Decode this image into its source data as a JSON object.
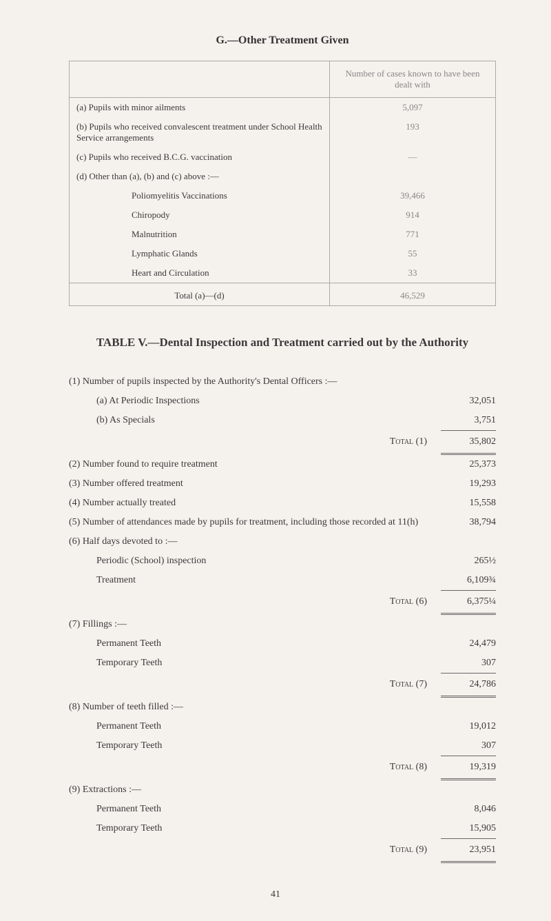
{
  "sectionG": {
    "title": "G.—Other Treatment Given",
    "headerRight": "Number of cases known to have been dealt with",
    "rows": [
      {
        "label": "(a) Pupils with minor ailments",
        "value": "5,097"
      },
      {
        "label": "(b) Pupils who received convalescent treatment under School Health Service arrangements",
        "value": "193"
      },
      {
        "label": "(c) Pupils who received B.C.G. vaccination",
        "value": "—"
      },
      {
        "label": "(d) Other than (a), (b) and (c) above :—",
        "value": ""
      }
    ],
    "subRows": [
      {
        "label": "Poliomyelitis Vaccinations",
        "value": "39,466"
      },
      {
        "label": "Chiropody",
        "value": "914"
      },
      {
        "label": "Malnutrition",
        "value": "771"
      },
      {
        "label": "Lymphatic Glands",
        "value": "55"
      },
      {
        "label": "Heart and Circulation",
        "value": "33"
      }
    ],
    "total": {
      "label": "Total (a)—(d)",
      "value": "46,529"
    }
  },
  "tableV": {
    "title": "TABLE V.—Dental Inspection and Treatment carried out by the Authority",
    "item1": {
      "heading": "(1) Number of pupils inspected by the Authority's Dental Officers :—",
      "a": {
        "label": "(a) At Periodic Inspections",
        "value": "32,051"
      },
      "b": {
        "label": "(b) As Specials",
        "value": "3,751"
      },
      "total": {
        "label": "Total (1)",
        "value": "35,802"
      }
    },
    "item2": {
      "label": "(2) Number found to require treatment",
      "value": "25,373"
    },
    "item3": {
      "label": "(3) Number offered treatment",
      "value": "19,293"
    },
    "item4": {
      "label": "(4) Number actually treated",
      "value": "15,558"
    },
    "item5": {
      "label": "(5) Number of attendances made by pupils for treatment, including those recorded at 11(h)",
      "value": "38,794"
    },
    "item6": {
      "heading": "(6) Half days devoted to :—",
      "periodic": {
        "label": "Periodic (School) inspection",
        "value": "265½"
      },
      "treatment": {
        "label": "Treatment",
        "value": "6,109¾"
      },
      "total": {
        "label": "Total (6)",
        "value": "6,375¼"
      }
    },
    "item7": {
      "heading": "(7) Fillings :—",
      "perm": {
        "label": "Permanent Teeth",
        "value": "24,479"
      },
      "temp": {
        "label": "Temporary Teeth",
        "value": "307"
      },
      "total": {
        "label": "Total (7)",
        "value": "24,786"
      }
    },
    "item8": {
      "heading": "(8) Number of teeth filled :—",
      "perm": {
        "label": "Permanent Teeth",
        "value": "19,012"
      },
      "temp": {
        "label": "Temporary Teeth",
        "value": "307"
      },
      "total": {
        "label": "Total (8)",
        "value": "19,319"
      }
    },
    "item9": {
      "heading": "(9) Extractions :—",
      "perm": {
        "label": "Permanent Teeth",
        "value": "8,046"
      },
      "temp": {
        "label": "Temporary Teeth",
        "value": "15,905"
      },
      "total": {
        "label": "Total (9)",
        "value": "23,951"
      }
    }
  },
  "pageNumber": "41"
}
